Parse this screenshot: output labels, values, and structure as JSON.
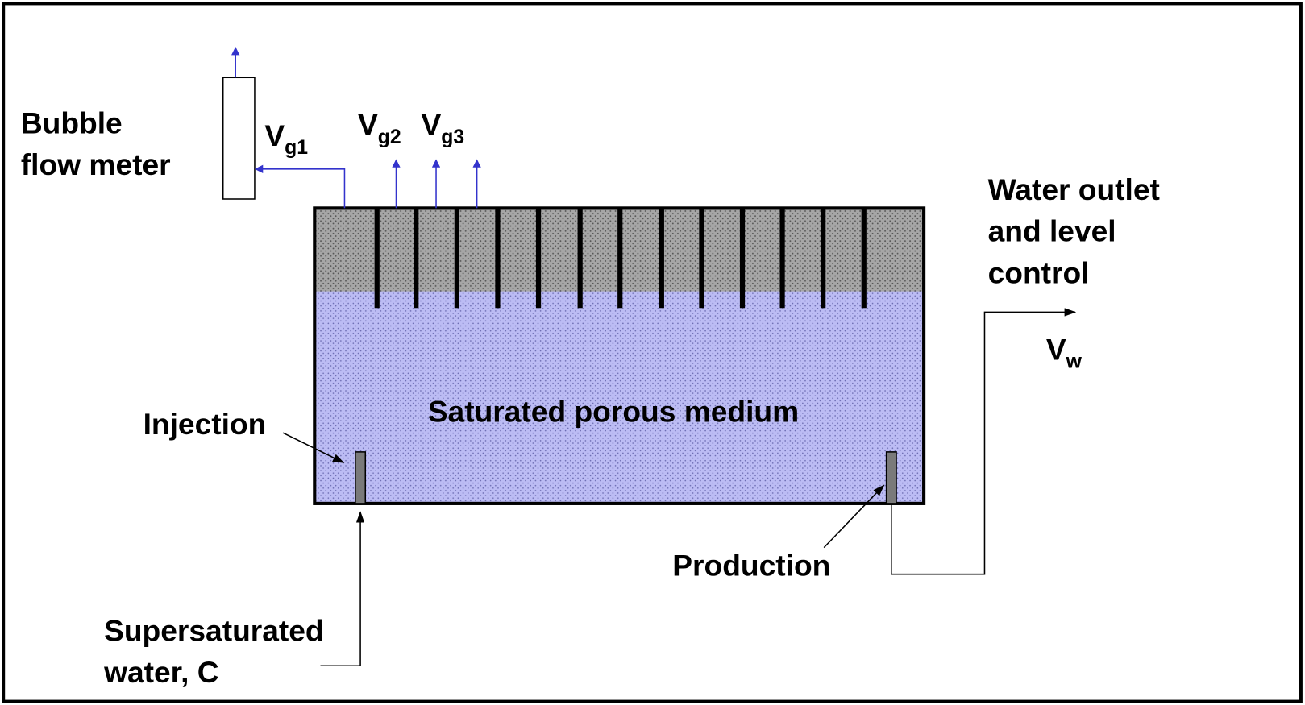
{
  "labels": {
    "bubble_flow_meter": [
      "Bubble",
      "flow meter"
    ],
    "water_outlet": [
      "Water outlet",
      "and level",
      "control"
    ],
    "medium": "Saturated porous medium",
    "injection": "Injection",
    "production": "Production",
    "supersaturated": [
      "Supersaturated",
      "water, C"
    ]
  },
  "flows": [
    {
      "symbol": "V",
      "subscript": "g1"
    },
    {
      "symbol": "V",
      "subscript": "g2"
    },
    {
      "symbol": "V",
      "subscript": "g3"
    },
    {
      "symbol": "V",
      "subscript": "w"
    }
  ]
}
